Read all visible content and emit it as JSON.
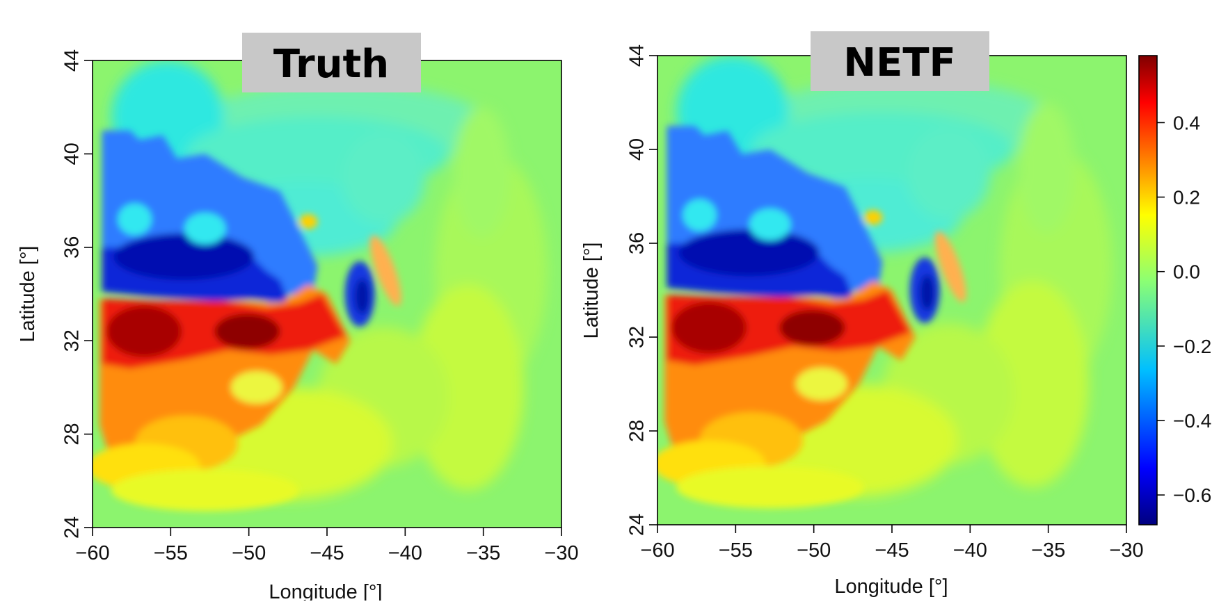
{
  "chart_data": [
    {
      "type": "heatmap",
      "title": "Truth",
      "xlabel": "Longitude [°]",
      "ylabel": "Latitude [°]",
      "xlim": [
        -60,
        -30
      ],
      "ylim": [
        24,
        44
      ],
      "xticks": [
        "−60",
        "−55",
        "−50",
        "−45",
        "−40",
        "−35",
        "−30"
      ],
      "yticks": [
        "24",
        "28",
        "32",
        "36",
        "40",
        "44"
      ]
    },
    {
      "type": "heatmap",
      "title": "NETF",
      "xlabel": "Longitude [°]",
      "ylabel": "Latitude [°]",
      "xlim": [
        -60,
        -30
      ],
      "ylim": [
        24,
        44
      ],
      "xticks": [
        "−60",
        "−55",
        "−50",
        "−45",
        "−40",
        "−35",
        "−30"
      ],
      "yticks": [
        "24",
        "28",
        "32",
        "36",
        "40",
        "44"
      ]
    }
  ],
  "colorbar": {
    "ticks": [
      "0.4",
      "0.2",
      "0.0",
      "−0.2",
      "−0.4",
      "−0.6"
    ],
    "range": [
      -0.68,
      0.58
    ],
    "colors": [
      "#00007f",
      "#0000ff",
      "#00bfff",
      "#8cff73",
      "#ffff00",
      "#ff7f00",
      "#ff0000",
      "#7f0000"
    ]
  }
}
